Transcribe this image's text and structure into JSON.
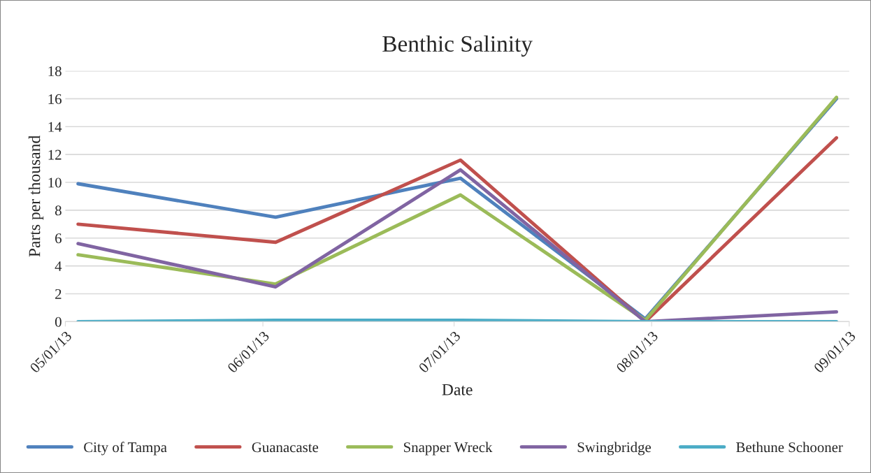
{
  "chart_data": {
    "type": "line",
    "title": "Benthic Salinity",
    "xlabel": "Date",
    "ylabel": "Parts per thousand",
    "x": [
      "2013-05-03",
      "2013-06-03",
      "2013-07-02",
      "2013-07-31",
      "2013-08-30"
    ],
    "series": [
      {
        "name": "City of Tampa",
        "color": "#4f81bd",
        "values": [
          9.9,
          7.5,
          10.3,
          0.2,
          16.0
        ]
      },
      {
        "name": "Guanacaste",
        "color": "#c0504d",
        "values": [
          7.0,
          5.7,
          11.6,
          0.0,
          13.2
        ]
      },
      {
        "name": "Snapper Wreck",
        "color": "#9bbb59",
        "values": [
          4.8,
          2.7,
          9.1,
          0.1,
          16.1
        ]
      },
      {
        "name": "Swingbridge",
        "color": "#8064a2",
        "values": [
          5.6,
          2.5,
          10.9,
          0.0,
          0.7
        ]
      },
      {
        "name": "Bethune Schooner",
        "color": "#4bacc6",
        "values": [
          0.0,
          0.1,
          0.1,
          0.0,
          0.0
        ]
      }
    ],
    "xlim": [
      "2013-05-01",
      "2013-09-01"
    ],
    "xticks": [
      {
        "value": "2013-05-01",
        "label": "05/01/13"
      },
      {
        "value": "2013-06-01",
        "label": "06/01/13"
      },
      {
        "value": "2013-07-01",
        "label": "07/01/13"
      },
      {
        "value": "2013-08-01",
        "label": "08/01/13"
      },
      {
        "value": "2013-09-01",
        "label": "09/01/13"
      }
    ],
    "ylim": [
      0,
      18
    ],
    "yticks": [
      0,
      2,
      4,
      6,
      8,
      10,
      12,
      14,
      16,
      18
    ],
    "grid": "y",
    "legend": "bottom",
    "marker": "none",
    "line_style": "solid"
  }
}
